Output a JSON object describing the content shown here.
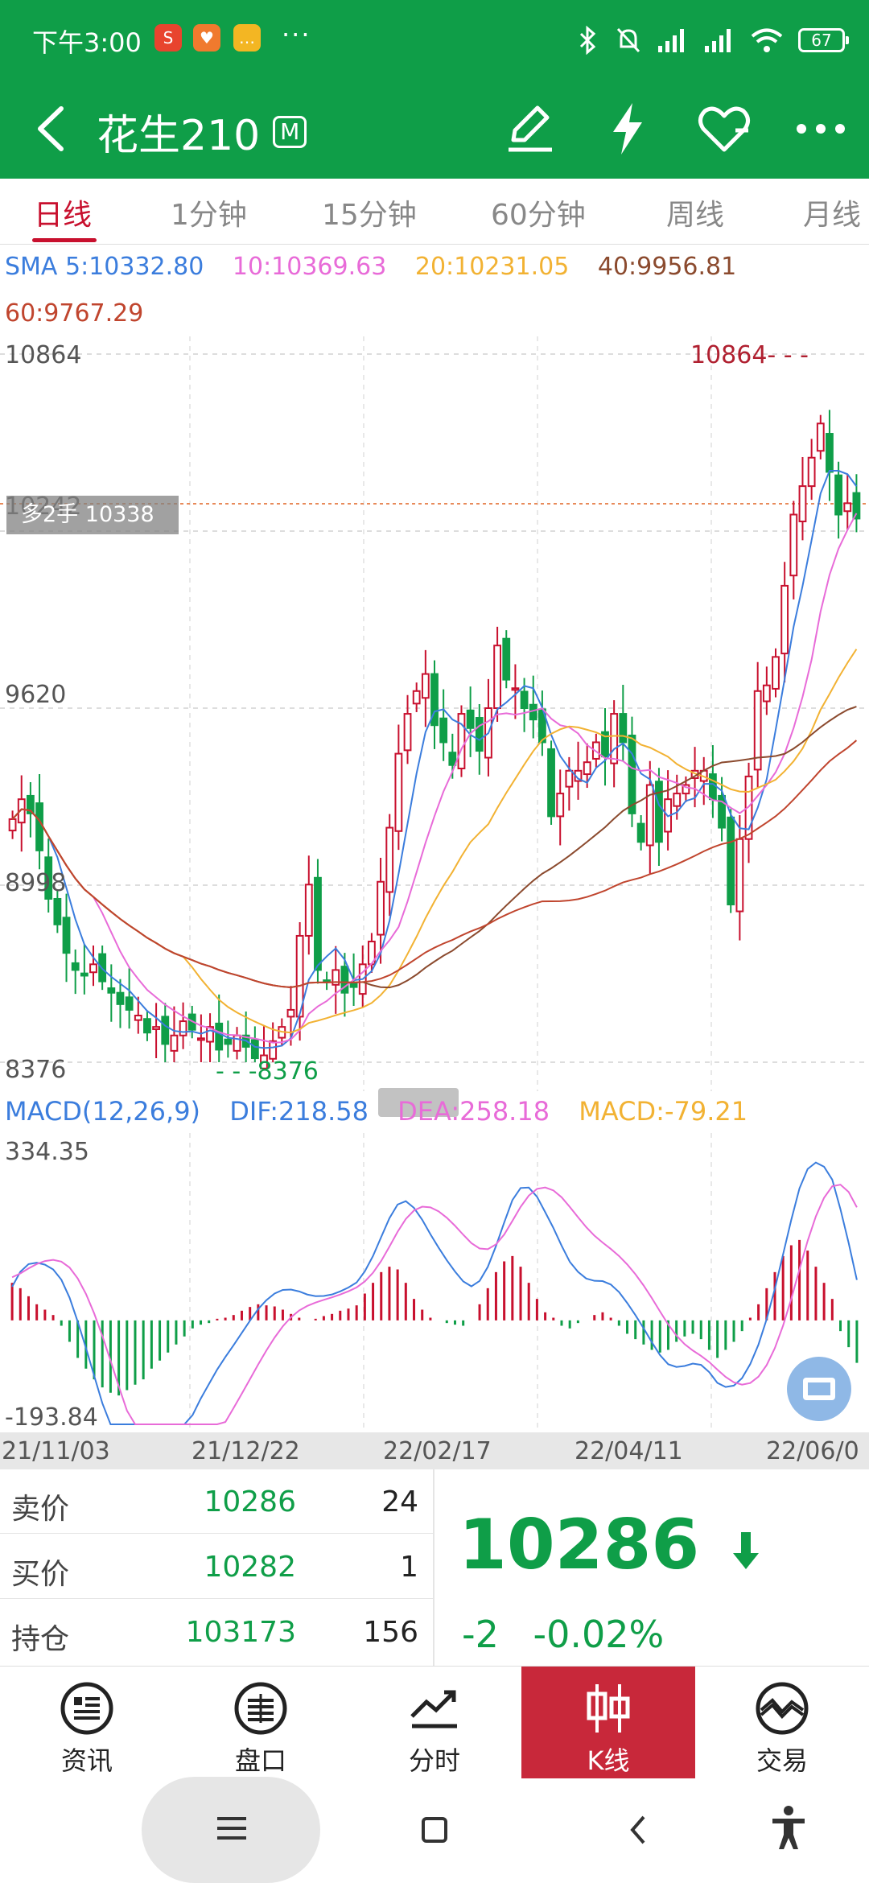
{
  "status_bar": {
    "time": "下午3:00",
    "dots": "···",
    "battery": "67",
    "icons": [
      "s-app-icon",
      "heart-app-icon",
      "chat-app-icon",
      "bluetooth-icon",
      "mute-icon",
      "signal-icon",
      "signal-icon",
      "wifi-icon",
      "battery-icon"
    ]
  },
  "header": {
    "title": "花生210",
    "badge": "M",
    "icons": [
      "back-icon",
      "edit-icon",
      "flash-icon",
      "favorite-icon",
      "more-icon"
    ]
  },
  "tabs": [
    "日线",
    "1分钟",
    "15分钟",
    "60分钟",
    "周线",
    "月线"
  ],
  "active_tab": 0,
  "sma": {
    "label": "SMA",
    "ma5": "5:10332.80",
    "ma10": "10:10369.63",
    "ma20": "20:10231.05",
    "ma40": "40:9956.81",
    "ma60": "60:9767.29"
  },
  "price_axis": {
    "high": "10864",
    "ref": "10242",
    "mid": "9620",
    "low2": "8998",
    "low": "8376"
  },
  "position_tag": "多2手 10338",
  "max_marker": "10864- - -",
  "min_marker": "- - -8376",
  "macd": {
    "label": "MACD(12,26,9)",
    "dif": "DIF:218.58",
    "dea": "DEA:258.18",
    "macd": "MACD:-79.21",
    "axis_top": "334.35",
    "axis_bottom": "-193.84"
  },
  "dates": [
    "21/11/03",
    "21/12/22",
    "22/02/17",
    "22/04/11",
    "22/06/0"
  ],
  "quotes": [
    {
      "label": "卖价",
      "price": "10286",
      "vol": "24"
    },
    {
      "label": "买价",
      "price": "10282",
      "vol": "1"
    },
    {
      "label": "持仓",
      "price": "103173",
      "vol": "156"
    }
  ],
  "last_price": "10286",
  "change": "-2",
  "change_pct": "-0.02%",
  "nav": [
    {
      "label": "资讯",
      "icon": "news-icon"
    },
    {
      "label": "盘口",
      "icon": "orderbook-icon"
    },
    {
      "label": "分时",
      "icon": "timeshare-icon"
    },
    {
      "label": "K线",
      "icon": "kline-icon"
    },
    {
      "label": "交易",
      "icon": "trade-icon"
    }
  ],
  "active_nav": 3,
  "colors": {
    "green": "#0f9e48",
    "red": "#c8102e",
    "ma5": "#3b7ddd",
    "ma10": "#e86bd8",
    "ma20": "#f2b233",
    "ma40": "#8b4a2e",
    "ma60": "#c0452e"
  },
  "chart_data": [
    {
      "type": "candlestick",
      "title": "",
      "x_ticks": [
        "21/11/03",
        "21/12/22",
        "22/02/17",
        "22/04/11",
        "22/06/0"
      ],
      "ylim": [
        8376,
        10864
      ],
      "y_ticks": [
        10864,
        10242,
        9620,
        8998,
        8376
      ],
      "close_series": [
        9230,
        9300,
        9250,
        9120,
        8950,
        8860,
        8760,
        8700,
        8680,
        8720,
        8660,
        8620,
        8580,
        8560,
        8540,
        8480,
        8500,
        8440,
        8470,
        8520,
        8490,
        8460,
        8500,
        8420,
        8440,
        8470,
        8430,
        8390,
        8400,
        8450,
        8500,
        8560,
        8820,
        9000,
        8700,
        8660,
        8700,
        8620,
        8640,
        8720,
        8800,
        9010,
        9200,
        9460,
        9600,
        9680,
        9740,
        9560,
        9500,
        9420,
        9600,
        9550,
        9470,
        9620,
        9840,
        9720,
        9690,
        9620,
        9580,
        9500,
        9240,
        9320,
        9400,
        9400,
        9430,
        9500,
        9450,
        9600,
        9500,
        9250,
        9150,
        9350,
        9150,
        9300,
        9320,
        9350,
        9400,
        9400,
        9300,
        9200,
        8930,
        9160,
        9380,
        9680,
        9700,
        9800,
        10050,
        10300,
        10400,
        10500,
        10620,
        10450,
        10300,
        10340,
        10286
      ],
      "series": [
        {
          "name": "5",
          "last": 10332.8
        },
        {
          "name": "10",
          "last": 10369.63
        },
        {
          "name": "20",
          "last": 10231.05
        },
        {
          "name": "40",
          "last": 9956.81
        },
        {
          "name": "60",
          "last": 9767.29
        }
      ],
      "annotations": [
        {
          "text": "10864",
          "type": "max"
        },
        {
          "text": "8376",
          "type": "min"
        }
      ]
    },
    {
      "type": "bar",
      "title": "MACD(12,26,9)",
      "ylim": [
        -193.84,
        334.35
      ],
      "series": [
        {
          "name": "DIF",
          "last": 218.58
        },
        {
          "name": "DEA",
          "last": 258.18
        },
        {
          "name": "MACD",
          "last": -79.21
        }
      ],
      "hist": [
        70,
        60,
        45,
        30,
        20,
        10,
        -10,
        -40,
        -70,
        -90,
        -110,
        -125,
        -135,
        -140,
        -130,
        -120,
        -110,
        -90,
        -75,
        -60,
        -45,
        -30,
        -15,
        -8,
        -5,
        3,
        5,
        10,
        18,
        25,
        30,
        28,
        26,
        20,
        12,
        5,
        0,
        3,
        8,
        12,
        18,
        22,
        28,
        50,
        70,
        90,
        100,
        95,
        70,
        40,
        20,
        5,
        0,
        -5,
        -8,
        -10,
        0,
        30,
        60,
        90,
        110,
        120,
        100,
        70,
        40,
        15,
        5,
        -10,
        -15,
        -5,
        0,
        10,
        15,
        5,
        -10,
        -25,
        -35,
        -45,
        -55,
        -60,
        -55,
        -40,
        -30,
        -25,
        -35,
        -55,
        -70,
        -55,
        -40,
        -20,
        5,
        30,
        60,
        90,
        120,
        140,
        150,
        130,
        100,
        70,
        40,
        -20,
        -50,
        -79.21
      ]
    }
  ]
}
